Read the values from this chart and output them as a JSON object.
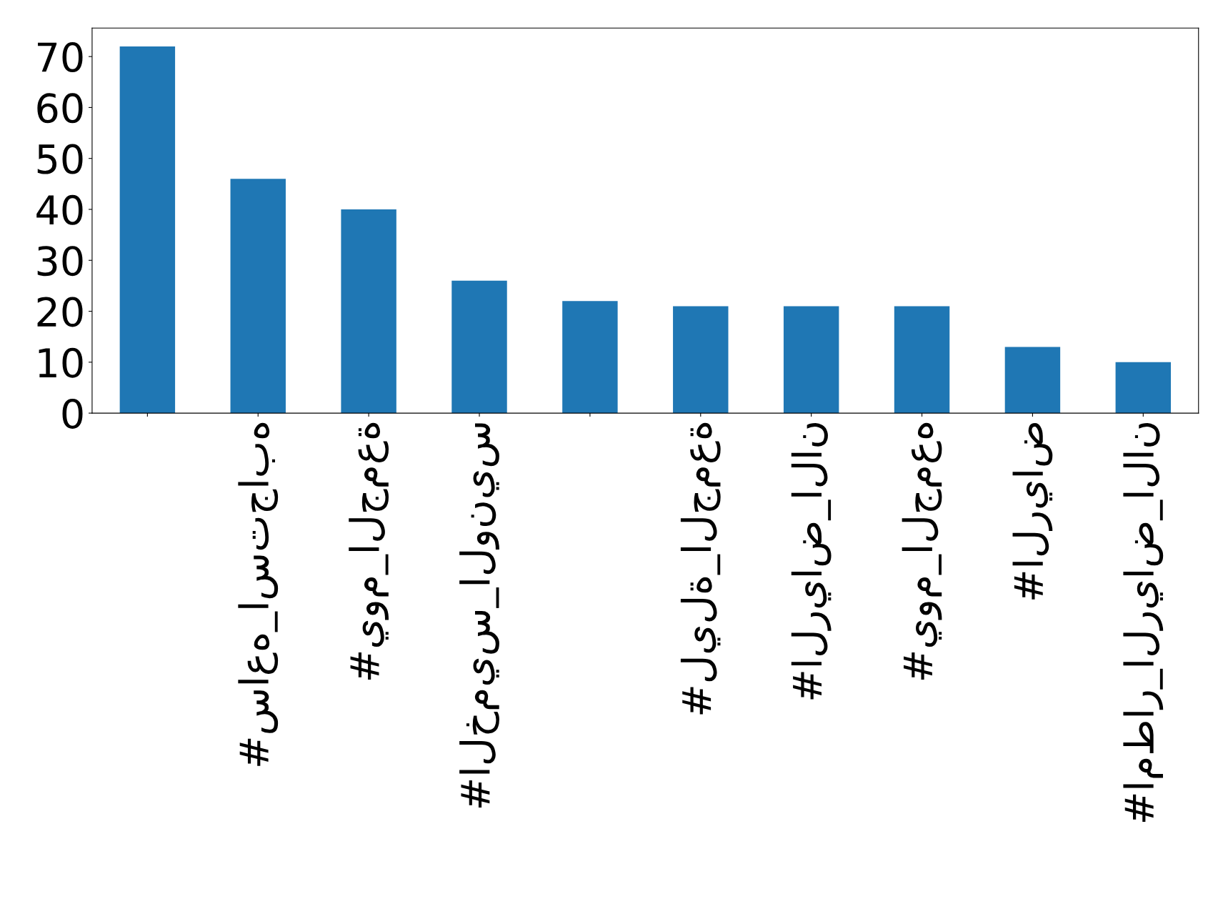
{
  "chart_data": {
    "type": "bar",
    "categories": [
      null,
      "#ساعه_استجابه",
      "#يوم_الجمعة",
      "#الخميس_الونيس",
      null,
      "#ليلة_الجمعة",
      "#الرياض_الان",
      "#يوم_الجمعه",
      "#الرياض",
      "#امطار_الرياض_الان"
    ],
    "values": [
      72,
      46,
      40,
      26,
      22,
      21,
      21,
      21,
      13,
      10
    ],
    "color": "#1f77b4",
    "ylim": [
      0,
      75.6
    ],
    "yticks": [
      0,
      10,
      20,
      30,
      40,
      50,
      60,
      70
    ],
    "grid": false,
    "legend": false
  }
}
